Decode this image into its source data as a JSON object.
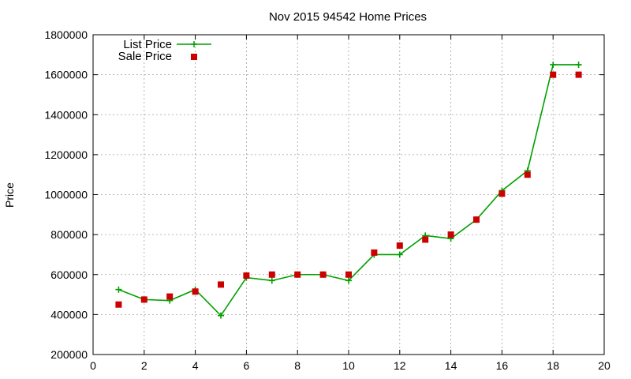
{
  "chart_data": {
    "type": "line",
    "title": "Nov 2015 94542 Home Prices",
    "xlabel": "",
    "ylabel": "Price",
    "xlim": [
      0,
      20
    ],
    "ylim": [
      200000,
      1800000
    ],
    "x_ticks": [
      0,
      2,
      4,
      6,
      8,
      10,
      12,
      14,
      16,
      18,
      20
    ],
    "y_ticks": [
      200000,
      400000,
      600000,
      800000,
      1000000,
      1200000,
      1400000,
      1600000,
      1800000
    ],
    "grid": true,
    "legend_position": "top-left",
    "series": [
      {
        "name": "List Price",
        "style": "line-with-plus-markers",
        "color": "#00a000",
        "x": [
          1,
          2,
          3,
          4,
          5,
          6,
          7,
          8,
          9,
          10,
          11,
          12,
          13,
          14,
          15,
          16,
          17,
          18,
          19
        ],
        "y": [
          525000,
          475000,
          470000,
          525000,
          395000,
          585000,
          570000,
          600000,
          600000,
          570000,
          700000,
          700000,
          795000,
          780000,
          875000,
          1020000,
          1120000,
          1650000,
          1650000
        ]
      },
      {
        "name": "Sale Price",
        "style": "square-markers",
        "color": "#cc0000",
        "x": [
          1,
          2,
          3,
          4,
          5,
          6,
          7,
          8,
          9,
          10,
          11,
          12,
          13,
          14,
          15,
          16,
          17,
          18,
          19
        ],
        "y": [
          450000,
          475000,
          490000,
          515000,
          550000,
          595000,
          600000,
          600000,
          600000,
          600000,
          710000,
          745000,
          775000,
          800000,
          875000,
          1005000,
          1100000,
          1600000,
          1600000
        ]
      }
    ]
  }
}
